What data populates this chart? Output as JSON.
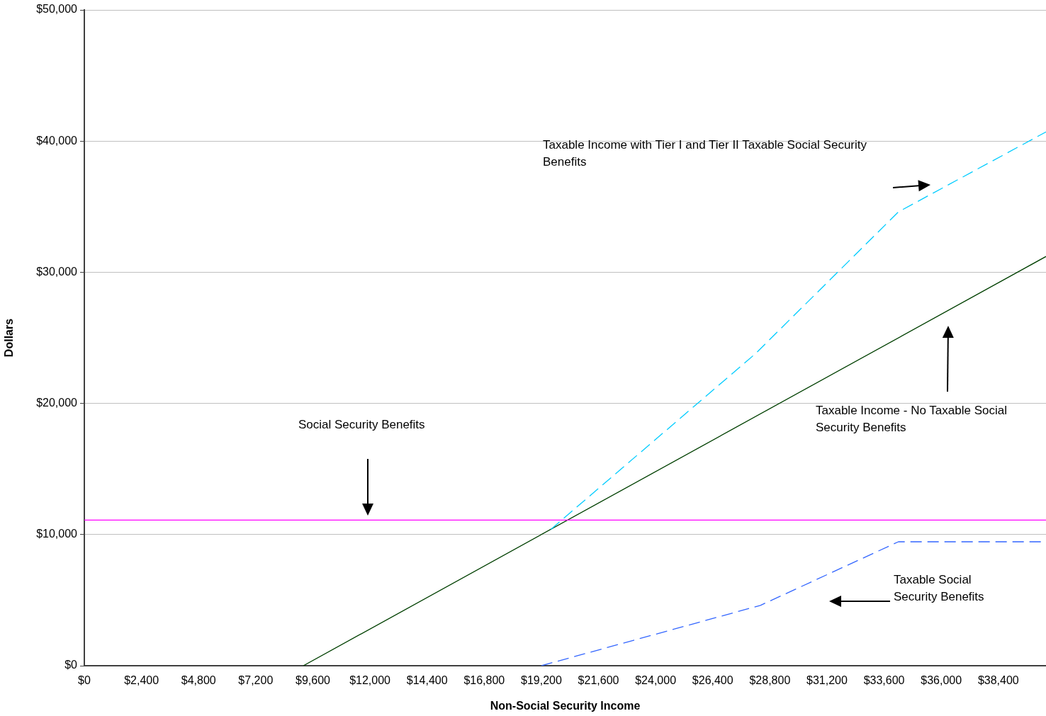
{
  "chart_data": {
    "type": "line",
    "xlabel": "Non-Social Security Income",
    "ylabel": "Dollars",
    "xlim": [
      0,
      40400
    ],
    "ylim": [
      0,
      50000
    ],
    "xticks": [
      {
        "value": 0,
        "label": "$0"
      },
      {
        "value": 2400,
        "label": "$2,400"
      },
      {
        "value": 4800,
        "label": "$4,800"
      },
      {
        "value": 7200,
        "label": "$7,200"
      },
      {
        "value": 9600,
        "label": "$9,600"
      },
      {
        "value": 12000,
        "label": "$12,000"
      },
      {
        "value": 14400,
        "label": "$14,400"
      },
      {
        "value": 16800,
        "label": "$16,800"
      },
      {
        "value": 19200,
        "label": "$19,200"
      },
      {
        "value": 21600,
        "label": "$21,600"
      },
      {
        "value": 24000,
        "label": "$24,000"
      },
      {
        "value": 26400,
        "label": "$26,400"
      },
      {
        "value": 28800,
        "label": "$28,800"
      },
      {
        "value": 31200,
        "label": "$31,200"
      },
      {
        "value": 33600,
        "label": "$33,600"
      },
      {
        "value": 36000,
        "label": "$36,000"
      },
      {
        "value": 38400,
        "label": "$38,400"
      }
    ],
    "yticks": [
      {
        "value": 0,
        "label": "$0"
      },
      {
        "value": 10000,
        "label": "$10,000"
      },
      {
        "value": 20000,
        "label": "$20,000"
      },
      {
        "value": 30000,
        "label": "$30,000"
      },
      {
        "value": 40000,
        "label": "$40,000"
      },
      {
        "value": 50000,
        "label": "$50,000"
      }
    ],
    "grid": "y",
    "legend": false,
    "marker": "none",
    "annotations": [
      "Social Security Benefits",
      "Taxable Income with Tier I and Tier II Taxable Social Security Benefits",
      "Taxable Income - No Taxable Social Security Benefits",
      "Taxable Social Security Benefits"
    ],
    "series": [
      {
        "color": "#ff00ff",
        "x": [
          0,
          40400
        ],
        "values": [
          11100,
          11100
        ]
      },
      {
        "color": "#00ccff",
        "line_style": "dashed",
        "x": [
          19600,
          28200,
          34200,
          40400
        ],
        "values": [
          10400,
          23800,
          34600,
          40700
        ]
      },
      {
        "color": "#004000",
        "x": [
          9200,
          40400
        ],
        "values": [
          0,
          31200
        ]
      },
      {
        "color": "#3366ff",
        "line_style": "dashed",
        "x": [
          19200,
          28400,
          34200,
          40400
        ],
        "values": [
          0,
          4600,
          9450,
          9450
        ]
      }
    ]
  }
}
